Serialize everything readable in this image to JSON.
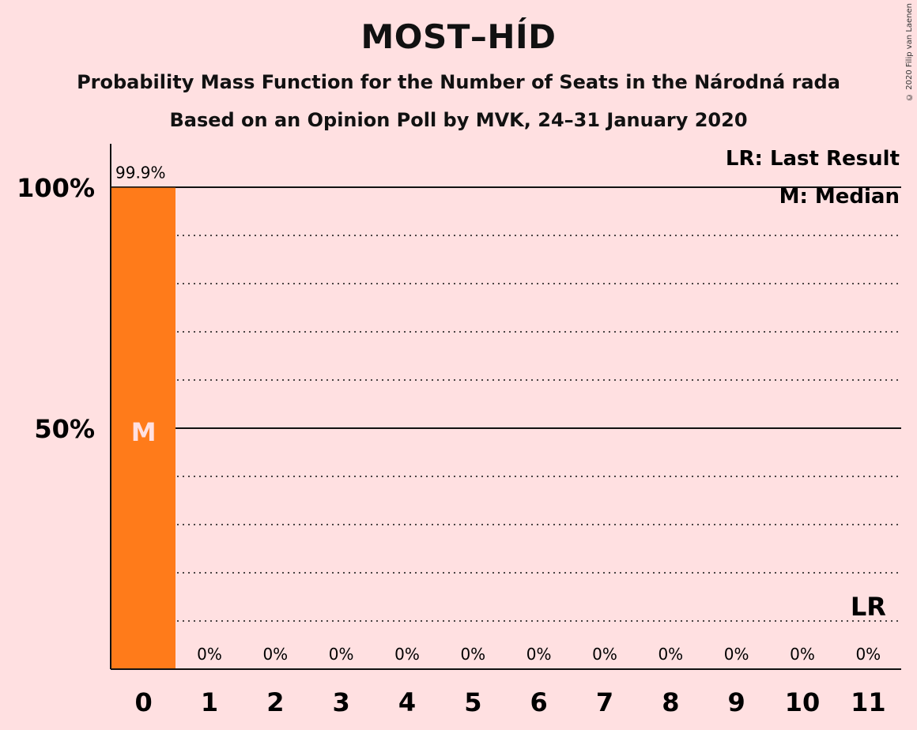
{
  "title": "MOST–HÍD",
  "subtitle_1": "Probability Mass Function for the Number of Seats in the Národná rada",
  "subtitle_2": "Based on an Opinion Poll by MVK, 24–31 January 2020",
  "copyright": "© 2020 Filip van Laenen",
  "legend": {
    "last_result": "LR: Last Result",
    "median": "M: Median"
  },
  "colors": {
    "background": "#FFE0E1",
    "bar": "#FF7B1A"
  },
  "chart_data": {
    "type": "bar",
    "categories": [
      "0",
      "1",
      "2",
      "3",
      "4",
      "5",
      "6",
      "7",
      "8",
      "9",
      "10",
      "11"
    ],
    "values": [
      99.9,
      0,
      0,
      0,
      0,
      0,
      0,
      0,
      0,
      0,
      0,
      0
    ],
    "value_labels": [
      "99.9%",
      "0%",
      "0%",
      "0%",
      "0%",
      "0%",
      "0%",
      "0%",
      "0%",
      "0%",
      "0%",
      "0%"
    ],
    "y_ticks": [
      {
        "value": 50,
        "label": "50%"
      },
      {
        "value": 100,
        "label": "100%"
      }
    ],
    "ylim": [
      0,
      100
    ],
    "minor_gridlines": [
      10,
      20,
      30,
      40,
      60,
      70,
      80,
      90
    ],
    "median_seat": "0",
    "median_marker": "M",
    "last_result_seat": "11",
    "last_result_marker": "LR"
  }
}
